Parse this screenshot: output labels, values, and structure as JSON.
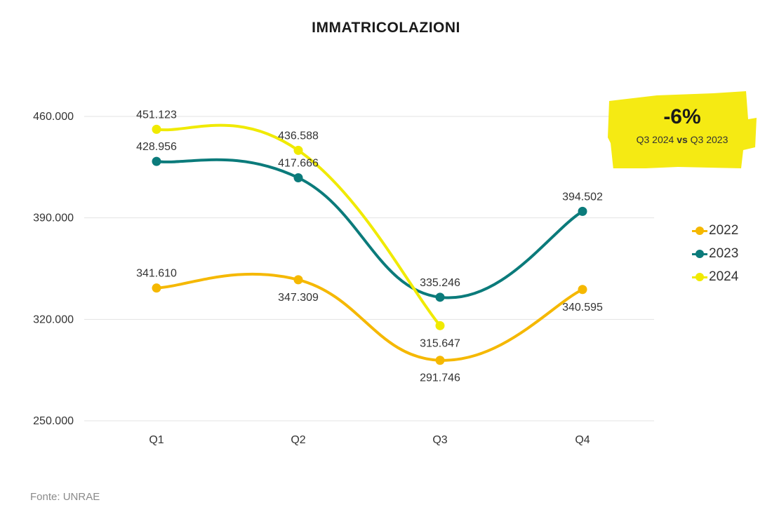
{
  "chart_data": {
    "type": "line",
    "title": "IMMATRICOLAZIONI",
    "categories": [
      "Q1",
      "Q2",
      "Q3",
      "Q4"
    ],
    "series": [
      {
        "name": "2022",
        "color": "#f5b800",
        "values": [
          341610,
          347309,
          291746,
          340595
        ],
        "labels": [
          "341.610",
          "347.309",
          "291.746",
          "340.595"
        ]
      },
      {
        "name": "2023",
        "color": "#0b7b7b",
        "values": [
          428956,
          417666,
          335246,
          394502
        ],
        "labels": [
          "428.956",
          "417.666",
          "335.246",
          "394.502"
        ]
      },
      {
        "name": "2024",
        "color": "#f0ea00",
        "values": [
          451123,
          436588,
          315647,
          null
        ],
        "labels": [
          "451.123",
          "436.588",
          "315.647",
          null
        ]
      }
    ],
    "yticks": [
      250000,
      320000,
      390000,
      460000
    ],
    "ytick_labels": [
      "250.000",
      "320.000",
      "390.000",
      "460.000"
    ],
    "ylim": [
      250000,
      460000
    ],
    "grid": true,
    "legend_position": "right"
  },
  "callout": {
    "value": "-6%",
    "part1": "Q3 2024",
    "vs": "vs",
    "part2": "Q3 2023",
    "color": "#f5ea13"
  },
  "source": "Fonte: UNRAE"
}
